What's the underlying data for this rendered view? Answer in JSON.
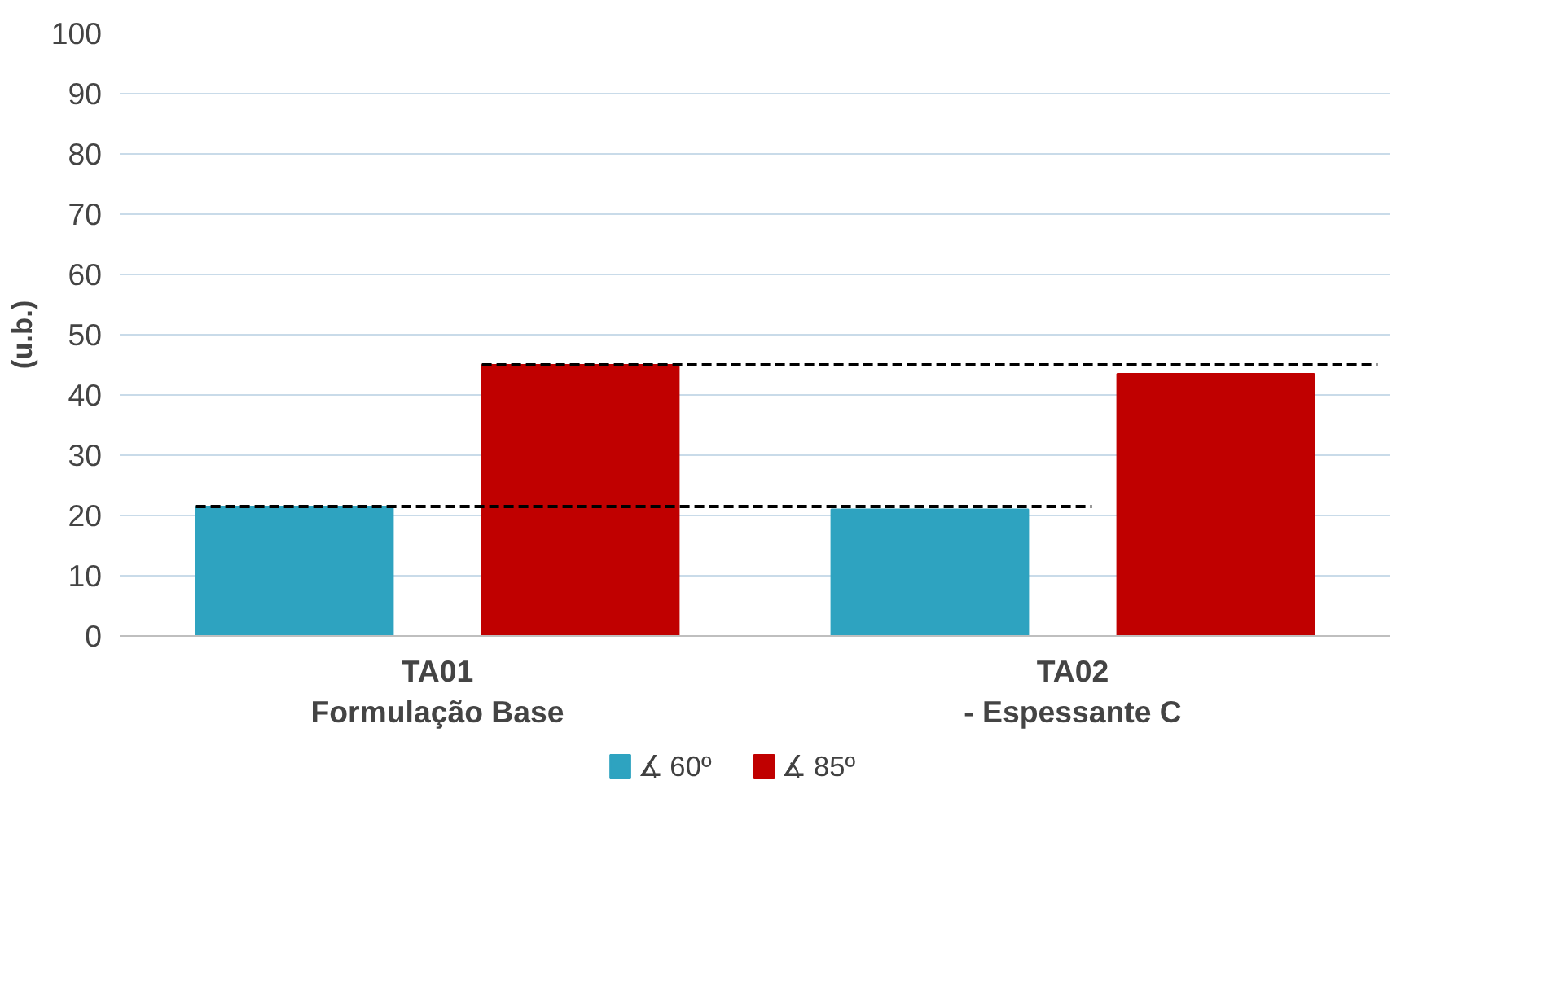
{
  "chart_data": {
    "type": "bar",
    "ylabel": "(u.b.)",
    "categories": [
      "TA01\nFormulação Base",
      "TA02\n- Espessante C"
    ],
    "series": [
      {
        "name": "∡ 60º",
        "color": "#2ea3c0",
        "values": [
          21.5,
          21
        ]
      },
      {
        "name": "∡ 85º",
        "color": "#c00000",
        "values": [
          45,
          43.5
        ]
      }
    ],
    "ylim": [
      0,
      100
    ],
    "yticks": [
      0,
      10,
      20,
      30,
      40,
      50,
      60,
      70,
      80,
      90,
      100
    ],
    "ref_lines": [
      {
        "axis": "y",
        "value": 21.5,
        "color": "#000000",
        "line_style": "dashed"
      },
      {
        "axis": "y",
        "value": 45,
        "color": "#000000",
        "line_style": "dashed"
      }
    ],
    "grid": "y",
    "legend": "bottom"
  }
}
